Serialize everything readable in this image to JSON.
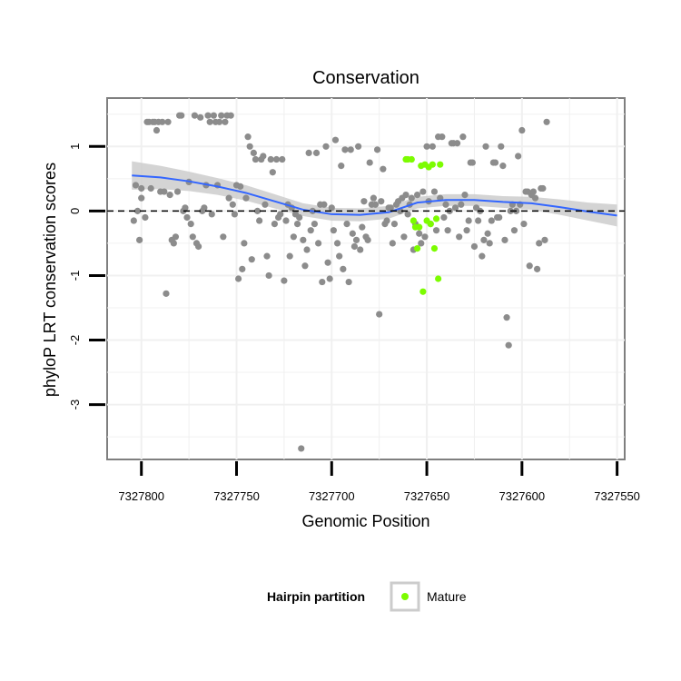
{
  "chart_data": {
    "type": "scatter",
    "title": "Conservation",
    "xlabel": "Genomic Position",
    "ylabel": "phyloP LRT conservation scores",
    "x_reversed": true,
    "xlim": [
      7327818,
      7327546
    ],
    "ylim": [
      -3.85,
      1.75
    ],
    "x_ticks": [
      7327800,
      7327750,
      7327700,
      7327650,
      7327600,
      7327550
    ],
    "x_tick_labels": [
      "7327800",
      "7327750",
      "7327700",
      "7327650",
      "7327600",
      "7327550"
    ],
    "y_ticks": [
      1,
      0,
      -1,
      -2,
      -3
    ],
    "y_tick_labels": [
      "1",
      "0",
      "-1",
      "-2",
      "-3"
    ],
    "grid": true,
    "reference_line": {
      "y": 0,
      "style": "dashed",
      "color": "#000000"
    },
    "colors": {
      "background": "#ffffff",
      "grid": "#f0f0f0",
      "border": "#7f7f7f",
      "gray_points": "#8c8c8c",
      "mature_points": "#7cfc00",
      "smooth_line": "#3366ff",
      "confidence_band": "#cccccc"
    },
    "legend": {
      "title": "Hairpin partition",
      "position": "bottom",
      "entries": [
        {
          "label": "Mature",
          "color": "#7cfc00"
        }
      ]
    },
    "series": [
      {
        "name": "",
        "color": "#8c8c8c",
        "points": [
          [
            7327804,
            -0.15
          ],
          [
            7327803,
            0.4
          ],
          [
            7327802,
            0.0
          ],
          [
            7327801,
            -0.45
          ],
          [
            7327800,
            0.2
          ],
          [
            7327800,
            0.35
          ],
          [
            7327798,
            -0.1
          ],
          [
            7327797,
            1.38
          ],
          [
            7327796,
            1.38
          ],
          [
            7327795,
            0.35
          ],
          [
            7327794,
            1.38
          ],
          [
            7327793,
            1.38
          ],
          [
            7327792,
            1.25
          ],
          [
            7327791,
            1.38
          ],
          [
            7327790,
            0.3
          ],
          [
            7327789,
            1.38
          ],
          [
            7327788,
            0.3
          ],
          [
            7327787,
            -1.28
          ],
          [
            7327786,
            1.38
          ],
          [
            7327785,
            0.25
          ],
          [
            7327784,
            -0.45
          ],
          [
            7327783,
            -0.5
          ],
          [
            7327782,
            -0.4
          ],
          [
            7327781,
            0.3
          ],
          [
            7327780,
            1.48
          ],
          [
            7327779,
            1.48
          ],
          [
            7327778,
            0.0
          ],
          [
            7327777,
            0.05
          ],
          [
            7327776,
            -0.1
          ],
          [
            7327775,
            0.45
          ],
          [
            7327774,
            -0.2
          ],
          [
            7327773,
            -0.4
          ],
          [
            7327772,
            1.48
          ],
          [
            7327771,
            -0.5
          ],
          [
            7327770,
            -0.55
          ],
          [
            7327769,
            1.45
          ],
          [
            7327768,
            0.0
          ],
          [
            7327767,
            0.05
          ],
          [
            7327766,
            0.4
          ],
          [
            7327765,
            1.48
          ],
          [
            7327764,
            1.38
          ],
          [
            7327763,
            -0.05
          ],
          [
            7327762,
            1.48
          ],
          [
            7327761,
            1.38
          ],
          [
            7327760,
            0.4
          ],
          [
            7327759,
            1.38
          ],
          [
            7327758,
            1.48
          ],
          [
            7327757,
            -0.4
          ],
          [
            7327756,
            1.38
          ],
          [
            7327755,
            1.48
          ],
          [
            7327754,
            0.2
          ],
          [
            7327753,
            1.48
          ],
          [
            7327752,
            0.1
          ],
          [
            7327751,
            -0.05
          ],
          [
            7327750,
            0.4
          ],
          [
            7327749,
            -1.05
          ],
          [
            7327748,
            0.38
          ],
          [
            7327747,
            -0.9
          ],
          [
            7327746,
            -0.5
          ],
          [
            7327745,
            0.2
          ],
          [
            7327744,
            1.15
          ],
          [
            7327743,
            1.0
          ],
          [
            7327742,
            -0.75
          ],
          [
            7327741,
            0.9
          ],
          [
            7327740,
            0.8
          ],
          [
            7327739,
            0.0
          ],
          [
            7327738,
            -0.15
          ],
          [
            7327737,
            0.8
          ],
          [
            7327736,
            0.85
          ],
          [
            7327735,
            0.1
          ],
          [
            7327734,
            -0.7
          ],
          [
            7327733,
            -1.0
          ],
          [
            7327732,
            0.8
          ],
          [
            7327731,
            0.6
          ],
          [
            7327730,
            -0.2
          ],
          [
            7327729,
            0.8
          ],
          [
            7327728,
            -0.1
          ],
          [
            7327727,
            -0.05
          ],
          [
            7327726,
            0.8
          ],
          [
            7327725,
            -1.08
          ],
          [
            7327724,
            -0.15
          ],
          [
            7327723,
            0.1
          ],
          [
            7327722,
            -0.7
          ],
          [
            7327721,
            0.05
          ],
          [
            7327720,
            -0.4
          ],
          [
            7327719,
            -0.05
          ],
          [
            7327718,
            -0.2
          ],
          [
            7327717,
            -0.1
          ],
          [
            7327716,
            -3.68
          ],
          [
            7327715,
            -0.45
          ],
          [
            7327714,
            -0.85
          ],
          [
            7327713,
            -0.6
          ],
          [
            7327712,
            0.9
          ],
          [
            7327711,
            -0.3
          ],
          [
            7327710,
            0.0
          ],
          [
            7327709,
            -0.2
          ],
          [
            7327708,
            0.9
          ],
          [
            7327707,
            -0.5
          ],
          [
            7327706,
            0.1
          ],
          [
            7327705,
            -1.1
          ],
          [
            7327704,
            0.1
          ],
          [
            7327703,
            1.0
          ],
          [
            7327702,
            -0.8
          ],
          [
            7327701,
            -1.05
          ],
          [
            7327700,
            0.05
          ],
          [
            7327699,
            -0.3
          ],
          [
            7327698,
            1.1
          ],
          [
            7327697,
            -0.5
          ],
          [
            7327696,
            -0.7
          ],
          [
            7327695,
            0.7
          ],
          [
            7327694,
            -0.9
          ],
          [
            7327693,
            0.95
          ],
          [
            7327692,
            -0.2
          ],
          [
            7327691,
            -1.1
          ],
          [
            7327690,
            0.95
          ],
          [
            7327689,
            -0.35
          ],
          [
            7327688,
            -0.55
          ],
          [
            7327687,
            -0.45
          ],
          [
            7327686,
            1.0
          ],
          [
            7327685,
            -0.6
          ],
          [
            7327684,
            -0.25
          ],
          [
            7327683,
            0.15
          ],
          [
            7327682,
            -0.4
          ],
          [
            7327681,
            -0.45
          ],
          [
            7327680,
            0.75
          ],
          [
            7327679,
            0.1
          ],
          [
            7327678,
            0.2
          ],
          [
            7327677,
            0.1
          ],
          [
            7327676,
            0.95
          ],
          [
            7327675,
            -1.6
          ],
          [
            7327674,
            0.15
          ],
          [
            7327673,
            0.65
          ],
          [
            7327672,
            -0.2
          ],
          [
            7327671,
            -0.15
          ],
          [
            7327670,
            0.05
          ],
          [
            7327669,
            0.05
          ],
          [
            7327668,
            -0.5
          ],
          [
            7327667,
            -0.2
          ],
          [
            7327666,
            0.1
          ],
          [
            7327665,
            0.15
          ],
          [
            7327664,
            0.0
          ],
          [
            7327663,
            0.2
          ],
          [
            7327662,
            -0.4
          ],
          [
            7327661,
            0.25
          ],
          [
            7327660,
            -0.05
          ],
          [
            7327659,
            0.1
          ],
          [
            7327658,
            0.2
          ],
          [
            7327657,
            -0.6
          ],
          [
            7327656,
            -0.2
          ],
          [
            7327655,
            0.25
          ],
          [
            7327654,
            -0.35
          ],
          [
            7327653,
            -0.5
          ],
          [
            7327652,
            0.3
          ],
          [
            7327651,
            -0.4
          ],
          [
            7327650,
            1.0
          ],
          [
            7327649,
            0.15
          ],
          [
            7327648,
            -0.2
          ],
          [
            7327647,
            1.0
          ],
          [
            7327646,
            0.3
          ],
          [
            7327645,
            -0.3
          ],
          [
            7327644,
            1.15
          ],
          [
            7327643,
            0.2
          ],
          [
            7327642,
            1.15
          ],
          [
            7327641,
            -0.1
          ],
          [
            7327640,
            0.1
          ],
          [
            7327639,
            -0.3
          ],
          [
            7327638,
            0.0
          ],
          [
            7327637,
            1.05
          ],
          [
            7327636,
            1.05
          ],
          [
            7327635,
            0.05
          ],
          [
            7327634,
            1.05
          ],
          [
            7327633,
            -0.4
          ],
          [
            7327632,
            0.1
          ],
          [
            7327631,
            1.15
          ],
          [
            7327630,
            0.25
          ],
          [
            7327629,
            -0.3
          ],
          [
            7327628,
            -0.15
          ],
          [
            7327627,
            0.75
          ],
          [
            7327626,
            0.75
          ],
          [
            7327625,
            -0.55
          ],
          [
            7327624,
            0.05
          ],
          [
            7327623,
            -0.15
          ],
          [
            7327622,
            0.0
          ],
          [
            7327621,
            -0.7
          ],
          [
            7327620,
            -0.45
          ],
          [
            7327619,
            1.0
          ],
          [
            7327618,
            -0.35
          ],
          [
            7327617,
            -0.5
          ],
          [
            7327616,
            -0.15
          ],
          [
            7327615,
            0.75
          ],
          [
            7327614,
            0.75
          ],
          [
            7327613,
            -0.1
          ],
          [
            7327612,
            -0.1
          ],
          [
            7327611,
            1.0
          ],
          [
            7327610,
            0.7
          ],
          [
            7327609,
            -0.45
          ],
          [
            7327608,
            -1.65
          ],
          [
            7327607,
            -2.08
          ],
          [
            7327606,
            0.0
          ],
          [
            7327605,
            0.1
          ],
          [
            7327604,
            -0.3
          ],
          [
            7327603,
            0.0
          ],
          [
            7327602,
            0.85
          ],
          [
            7327601,
            0.1
          ],
          [
            7327600,
            1.25
          ],
          [
            7327599,
            -0.2
          ],
          [
            7327598,
            0.3
          ],
          [
            7327597,
            0.3
          ],
          [
            7327596,
            -0.85
          ],
          [
            7327595,
            0.25
          ],
          [
            7327594,
            0.3
          ],
          [
            7327593,
            0.2
          ],
          [
            7327592,
            -0.9
          ],
          [
            7327591,
            -0.5
          ],
          [
            7327590,
            0.35
          ],
          [
            7327589,
            0.35
          ],
          [
            7327588,
            -0.45
          ],
          [
            7327587,
            1.38
          ]
        ]
      },
      {
        "name": "Mature",
        "color": "#7cfc00",
        "points": [
          [
            7327661,
            0.8
          ],
          [
            7327660,
            0.8
          ],
          [
            7327658,
            0.8
          ],
          [
            7327657,
            -0.15
          ],
          [
            7327656,
            -0.25
          ],
          [
            7327655,
            -0.58
          ],
          [
            7327654,
            -0.25
          ],
          [
            7327653,
            0.7
          ],
          [
            7327652,
            -1.25
          ],
          [
            7327651,
            0.72
          ],
          [
            7327650,
            -0.15
          ],
          [
            7327649,
            0.68
          ],
          [
            7327648,
            -0.2
          ],
          [
            7327647,
            0.72
          ],
          [
            7327646,
            -0.58
          ],
          [
            7327645,
            -0.12
          ],
          [
            7327644,
            -1.05
          ],
          [
            7327643,
            0.72
          ]
        ]
      }
    ],
    "smooth": {
      "x": [
        7327805,
        7327790,
        7327775,
        7327760,
        7327745,
        7327730,
        7327715,
        7327700,
        7327685,
        7327670,
        7327655,
        7327640,
        7327625,
        7327610,
        7327595,
        7327580,
        7327565,
        7327550
      ],
      "y": [
        0.55,
        0.52,
        0.46,
        0.38,
        0.28,
        0.15,
        0.02,
        -0.05,
        -0.06,
        -0.02,
        0.13,
        0.17,
        0.17,
        0.14,
        0.12,
        0.06,
        -0.01,
        -0.07
      ],
      "se": [
        0.22,
        0.18,
        0.15,
        0.13,
        0.12,
        0.11,
        0.1,
        0.1,
        0.1,
        0.1,
        0.09,
        0.09,
        0.09,
        0.09,
        0.1,
        0.12,
        0.14,
        0.17
      ]
    }
  }
}
